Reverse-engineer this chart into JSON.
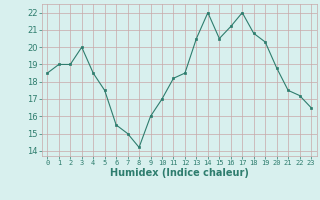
{
  "x": [
    0,
    1,
    2,
    3,
    4,
    5,
    6,
    7,
    8,
    9,
    10,
    11,
    12,
    13,
    14,
    15,
    16,
    17,
    18,
    19,
    20,
    21,
    22,
    23
  ],
  "y": [
    18.5,
    19.0,
    19.0,
    20.0,
    18.5,
    17.5,
    15.5,
    15.0,
    14.2,
    16.0,
    17.0,
    18.2,
    18.5,
    20.5,
    22.0,
    20.5,
    21.2,
    22.0,
    20.8,
    20.3,
    18.8,
    17.5,
    17.2,
    16.5
  ],
  "line_color": "#2e7d6e",
  "marker": "s",
  "marker_size": 2,
  "bg_color": "#d8f0ee",
  "grid_color": "#c8a8a8",
  "xlabel": "Humidex (Indice chaleur)",
  "ylabel_ticks": [
    14,
    15,
    16,
    17,
    18,
    19,
    20,
    21,
    22
  ],
  "xlim": [
    -0.5,
    23.5
  ],
  "ylim": [
    13.7,
    22.5
  ],
  "tick_color": "#2e7d6e",
  "label_color": "#2e7d6e"
}
